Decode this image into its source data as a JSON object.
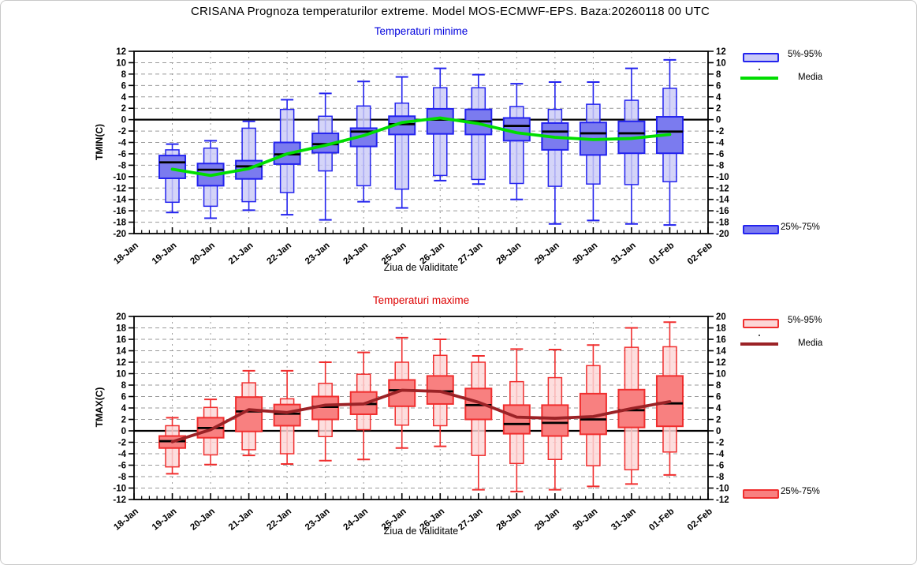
{
  "page": {
    "title": "CRISANA  Prognoza temperaturilor extreme.  Model MOS-ECMWF-EPS. Baza:20260118 00 UTC"
  },
  "xaxis": {
    "label": "Ziua de validitate",
    "categories": [
      "18-Jan",
      "19-Jan",
      "20-Jan",
      "21-Jan",
      "22-Jan",
      "23-Jan",
      "24-Jan",
      "25-Jan",
      "26-Jan",
      "27-Jan",
      "28-Jan",
      "29-Jan",
      "30-Jan",
      "31-Jan",
      "01-Feb",
      "02-Feb"
    ]
  },
  "chart_data": [
    {
      "type": "boxplot",
      "id": "tmin",
      "title": "Temperaturi minime",
      "title_color": "#0000dd",
      "ylabel": "TMIN(C)",
      "ylim": [
        -20,
        12
      ],
      "ytick_step": 2,
      "grid": true,
      "legend": {
        "p5_95": "5%-95%",
        "media": "Media",
        "p25_75": "25%-75%"
      },
      "legend_position": "right",
      "colors": {
        "box_border": "#2323ee",
        "box_fill_25_75": "#7b7bef",
        "box_fill_5_95": "#cbcbf7",
        "mean_line": "#00dd00",
        "median_line": "#000000"
      },
      "days": [
        "19-Jan",
        "20-Jan",
        "21-Jan",
        "22-Jan",
        "23-Jan",
        "24-Jan",
        "25-Jan",
        "26-Jan",
        "27-Jan",
        "28-Jan",
        "29-Jan",
        "30-Jan",
        "31-Jan",
        "01-Feb"
      ],
      "whisker_high": [
        -4.3,
        -3.7,
        -0.3,
        3.5,
        4.6,
        6.7,
        7.5,
        9.0,
        7.9,
        6.3,
        6.6,
        6.6,
        9.0,
        10.5
      ],
      "p95": [
        -5.3,
        -5.0,
        -1.5,
        1.8,
        0.6,
        2.4,
        2.9,
        5.6,
        5.6,
        2.3,
        1.8,
        2.7,
        3.4,
        5.5
      ],
      "p75": [
        -6.3,
        -7.7,
        -7.2,
        -4.0,
        -2.4,
        -1.5,
        0.6,
        1.9,
        1.8,
        0.3,
        -0.6,
        -0.5,
        -0.3,
        0.5
      ],
      "median": [
        -7.5,
        -8.8,
        -8.2,
        -6.1,
        -4.3,
        -2.1,
        -0.8,
        0.0,
        -0.3,
        -1.1,
        -2.1,
        -2.4,
        -2.4,
        -2.1
      ],
      "p25": [
        -10.3,
        -11.6,
        -10.4,
        -7.8,
        -5.8,
        -4.7,
        -2.6,
        -2.5,
        -2.6,
        -3.7,
        -5.3,
        -6.2,
        -5.9,
        -5.9
      ],
      "p05": [
        -14.5,
        -15.2,
        -14.4,
        -12.8,
        -9.0,
        -11.6,
        -12.2,
        -9.8,
        -10.5,
        -11.2,
        -11.7,
        -11.3,
        -11.4,
        -10.9
      ],
      "whisker_low": [
        -16.3,
        -17.3,
        -15.9,
        -16.7,
        -17.6,
        -14.4,
        -15.5,
        -10.7,
        -11.3,
        -14.0,
        -18.3,
        -17.7,
        -18.3,
        -18.5
      ],
      "mean": [
        -8.7,
        -9.8,
        -8.6,
        -6.0,
        -4.5,
        -2.8,
        -0.5,
        0.3,
        -0.7,
        -2.3,
        -3.1,
        -3.5,
        -3.3,
        -2.6
      ]
    },
    {
      "type": "boxplot",
      "id": "tmax",
      "title": "Temperaturi maxime",
      "title_color": "#dd0000",
      "ylabel": "TMAX(C)",
      "ylim": [
        -12,
        20
      ],
      "ytick_step": 2,
      "grid": true,
      "legend": {
        "p5_95": "5%-95%",
        "media": "Media",
        "p25_75": "25%-75%"
      },
      "legend_position": "right",
      "colors": {
        "box_border": "#f02e2e",
        "box_fill_25_75": "#f88080",
        "box_fill_5_95": "#fcd7d7",
        "mean_line": "#9b2226",
        "median_line": "#000000"
      },
      "days": [
        "19-Jan",
        "20-Jan",
        "21-Jan",
        "22-Jan",
        "23-Jan",
        "24-Jan",
        "25-Jan",
        "26-Jan",
        "27-Jan",
        "28-Jan",
        "29-Jan",
        "30-Jan",
        "31-Jan",
        "01-Feb"
      ],
      "whisker_high": [
        2.3,
        5.5,
        10.5,
        10.5,
        12.0,
        13.7,
        16.3,
        16.0,
        13.1,
        14.3,
        14.2,
        15.0,
        18.0,
        19.0
      ],
      "p95": [
        0.9,
        4.1,
        8.4,
        5.6,
        8.3,
        9.9,
        12.0,
        13.2,
        12.0,
        8.6,
        9.3,
        11.4,
        14.6,
        14.7
      ],
      "p75": [
        -0.9,
        2.3,
        5.9,
        4.6,
        6.0,
        6.8,
        8.9,
        9.6,
        7.4,
        4.5,
        4.5,
        6.5,
        7.2,
        9.6
      ],
      "median": [
        -1.8,
        0.5,
        3.4,
        3.0,
        4.2,
        4.7,
        7.1,
        6.9,
        4.5,
        1.2,
        1.4,
        2.0,
        3.6,
        4.8
      ],
      "p25": [
        -3.0,
        -1.2,
        -0.1,
        0.9,
        2.0,
        2.9,
        4.3,
        4.7,
        2.0,
        -0.5,
        -0.9,
        -0.6,
        0.6,
        0.8
      ],
      "p05": [
        -6.3,
        -4.2,
        -3.3,
        -4.0,
        -1.0,
        0.2,
        1.0,
        0.9,
        -4.3,
        -5.7,
        -5.0,
        -6.1,
        -6.8,
        -3.7
      ],
      "whisker_low": [
        -7.5,
        -5.9,
        -4.3,
        -5.8,
        -5.2,
        -5.0,
        -3.0,
        -2.7,
        -10.3,
        -10.6,
        -10.3,
        -9.7,
        -9.3,
        -7.7
      ],
      "mean": [
        -1.9,
        0.2,
        3.7,
        3.2,
        4.5,
        4.7,
        7.1,
        6.9,
        5.0,
        2.4,
        2.2,
        2.5,
        3.9,
        5.1
      ]
    }
  ]
}
